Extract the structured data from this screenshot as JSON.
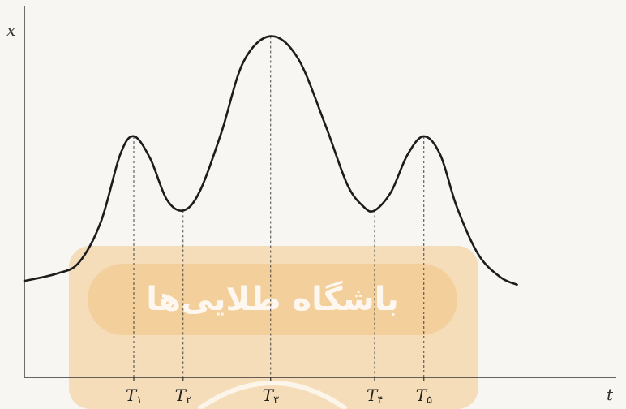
{
  "chart_data": {
    "type": "line",
    "title": "",
    "xlabel": "t",
    "ylabel": "x",
    "xlim": [
      0,
      10
    ],
    "ylim": [
      0,
      10
    ],
    "grid": false,
    "tick_labels": [
      {
        "base": "T",
        "sub": "۱",
        "x": 2.0
      },
      {
        "base": "T",
        "sub": "۲",
        "x": 2.9
      },
      {
        "base": "T",
        "sub": "۳",
        "x": 4.5
      },
      {
        "base": "T",
        "sub": "۴",
        "x": 6.4
      },
      {
        "base": "T",
        "sub": "۵",
        "x": 7.3
      }
    ],
    "series": [
      {
        "points": [
          [
            0.0,
            2.6
          ],
          [
            0.6,
            2.8
          ],
          [
            1.0,
            3.1
          ],
          [
            1.4,
            4.2
          ],
          [
            1.75,
            6.0
          ],
          [
            2.0,
            6.5
          ],
          [
            2.3,
            5.9
          ],
          [
            2.6,
            4.8
          ],
          [
            2.9,
            4.5
          ],
          [
            3.2,
            5.0
          ],
          [
            3.6,
            6.6
          ],
          [
            4.0,
            8.5
          ],
          [
            4.5,
            9.2
          ],
          [
            5.0,
            8.6
          ],
          [
            5.5,
            6.8
          ],
          [
            5.9,
            5.2
          ],
          [
            6.2,
            4.6
          ],
          [
            6.4,
            4.5
          ],
          [
            6.7,
            5.0
          ],
          [
            7.0,
            6.0
          ],
          [
            7.3,
            6.5
          ],
          [
            7.6,
            6.0
          ],
          [
            7.9,
            4.6
          ],
          [
            8.3,
            3.3
          ],
          [
            8.7,
            2.7
          ],
          [
            9.0,
            2.5
          ]
        ]
      }
    ]
  },
  "watermark": {
    "text": "باشگاه طلایی‌ها",
    "color": "#f4c98a"
  }
}
